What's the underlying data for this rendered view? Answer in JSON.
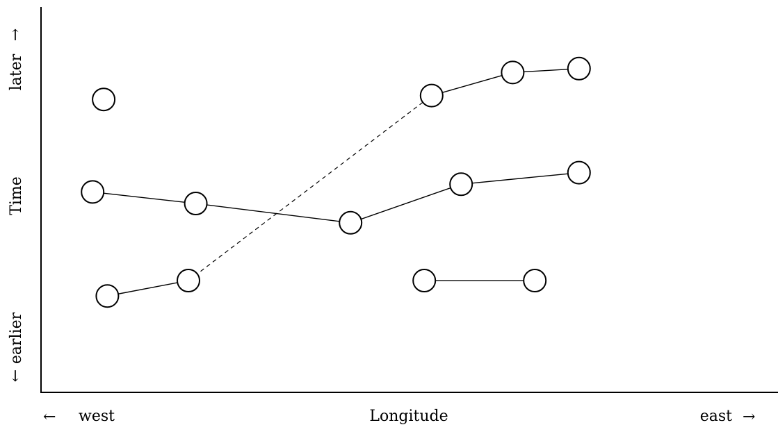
{
  "labels": {
    "x_axis": "Longitude",
    "y_axis": "Time",
    "west": "west",
    "east": "east",
    "earlier": "earlier",
    "later": "later"
  },
  "arrows": {
    "left": "←",
    "right": "→",
    "up": "↑",
    "down": "↓"
  },
  "chart_data": {
    "type": "scatter",
    "xlabel": "Longitude",
    "ylabel": "Time",
    "x_direction": [
      "west",
      "east"
    ],
    "y_direction": [
      "earlier",
      "later"
    ],
    "points": [
      {
        "x": 0.085,
        "y": 0.76
      },
      {
        "x": 0.07,
        "y": 0.52
      },
      {
        "x": 0.21,
        "y": 0.49
      },
      {
        "x": 0.42,
        "y": 0.44
      },
      {
        "x": 0.57,
        "y": 0.54
      },
      {
        "x": 0.73,
        "y": 0.57
      },
      {
        "x": 0.09,
        "y": 0.25
      },
      {
        "x": 0.2,
        "y": 0.29
      },
      {
        "x": 0.53,
        "y": 0.77
      },
      {
        "x": 0.64,
        "y": 0.83
      },
      {
        "x": 0.73,
        "y": 0.84
      },
      {
        "x": 0.52,
        "y": 0.29
      },
      {
        "x": 0.67,
        "y": 0.29
      }
    ],
    "connections": [
      {
        "from": 1,
        "to": 2,
        "style": "solid"
      },
      {
        "from": 2,
        "to": 3,
        "style": "solid"
      },
      {
        "from": 3,
        "to": 4,
        "style": "solid"
      },
      {
        "from": 4,
        "to": 5,
        "style": "solid"
      },
      {
        "from": 6,
        "to": 7,
        "style": "solid"
      },
      {
        "from": 7,
        "to": 8,
        "style": "dashed"
      },
      {
        "from": 8,
        "to": 9,
        "style": "solid"
      },
      {
        "from": 9,
        "to": 10,
        "style": "solid"
      },
      {
        "from": 11,
        "to": 12,
        "style": "solid"
      }
    ]
  }
}
